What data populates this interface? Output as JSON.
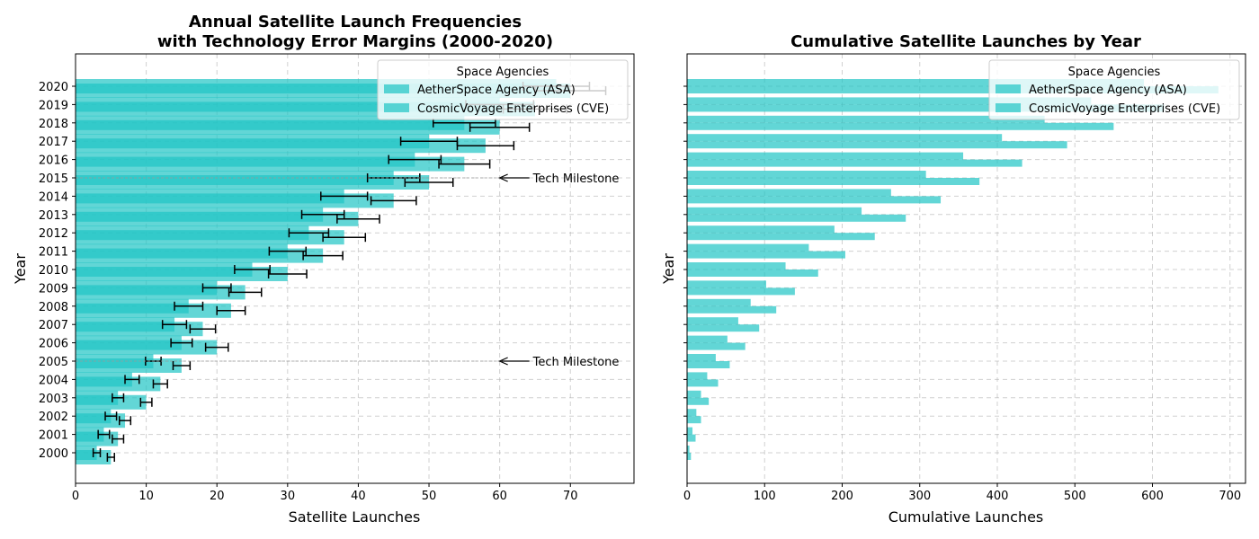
{
  "chart_data": [
    {
      "type": "bar",
      "orientation": "horizontal",
      "title": "Annual Satellite Launch Frequencies\nwith Technology Error Margins (2000-2020)",
      "xlabel": "Satellite Launches",
      "ylabel": "Year",
      "xlim": [
        0,
        79
      ],
      "xticks": [
        0,
        10,
        20,
        30,
        40,
        50,
        60,
        70
      ],
      "categories": [
        "2000",
        "2001",
        "2002",
        "2003",
        "2004",
        "2005",
        "2006",
        "2007",
        "2008",
        "2009",
        "2010",
        "2011",
        "2012",
        "2013",
        "2014",
        "2015",
        "2016",
        "2017",
        "2018",
        "2019",
        "2020"
      ],
      "grid": true,
      "legend": {
        "title": "Space Agencies",
        "location": "top-right"
      },
      "series": [
        {
          "name": "AetherSpace Agency (ASA)",
          "color": "#20c5c5",
          "values": [
            3,
            4,
            5,
            6,
            8,
            11,
            15,
            14,
            16,
            20,
            25,
            30,
            33,
            35,
            38,
            45,
            48,
            50,
            55,
            60,
            68
          ],
          "errors": [
            0.5,
            0.8,
            0.8,
            0.8,
            1.0,
            1.1,
            1.5,
            1.7,
            2.0,
            2.0,
            2.5,
            2.6,
            2.8,
            3.0,
            3.3,
            3.7,
            3.7,
            4.0,
            4.4,
            4.8,
            4.7
          ]
        },
        {
          "name": "CosmicVoyage Enterprises (CVE)",
          "color": "#20c5c5",
          "values": [
            5,
            6,
            7,
            10,
            12,
            15,
            20,
            18,
            22,
            24,
            30,
            35,
            38,
            40,
            45,
            50,
            55,
            58,
            60,
            65,
            70
          ],
          "errors": [
            0.5,
            0.8,
            0.8,
            0.8,
            1.0,
            1.2,
            1.6,
            1.8,
            2.0,
            2.3,
            2.7,
            2.8,
            3.0,
            3.0,
            3.2,
            3.4,
            3.6,
            4.0,
            4.2,
            4.5,
            5.0
          ]
        }
      ],
      "annotations": [
        {
          "text": "Tech Milestone",
          "year": "2005",
          "arrow_to": 60
        },
        {
          "text": "Tech Milestone",
          "year": "2015",
          "arrow_to": 60
        }
      ]
    },
    {
      "type": "bar",
      "orientation": "horizontal",
      "title": "Cumulative Satellite Launches by Year",
      "xlabel": "Cumulative Launches",
      "ylabel": "Year",
      "xlim": [
        0,
        720
      ],
      "xticks": [
        0,
        100,
        200,
        300,
        400,
        500,
        600,
        700
      ],
      "categories": [
        "2000",
        "2001",
        "2002",
        "2003",
        "2004",
        "2005",
        "2006",
        "2007",
        "2008",
        "2009",
        "2010",
        "2011",
        "2012",
        "2013",
        "2014",
        "2015",
        "2016",
        "2017",
        "2018",
        "2019",
        "2020"
      ],
      "grid": true,
      "legend": {
        "title": "Space Agencies",
        "location": "top-right"
      },
      "series": [
        {
          "name": "AetherSpace Agency (ASA)",
          "color": "#20c5c5",
          "values": [
            3,
            7,
            12,
            18,
            26,
            37,
            52,
            66,
            82,
            102,
            127,
            157,
            190,
            225,
            263,
            308,
            356,
            406,
            461,
            521,
            589
          ]
        },
        {
          "name": "CosmicVoyage Enterprises (CVE)",
          "color": "#20c5c5",
          "values": [
            5,
            11,
            18,
            28,
            40,
            55,
            75,
            93,
            115,
            139,
            169,
            204,
            242,
            282,
            327,
            377,
            432,
            490,
            550,
            615,
            685
          ]
        }
      ]
    }
  ]
}
